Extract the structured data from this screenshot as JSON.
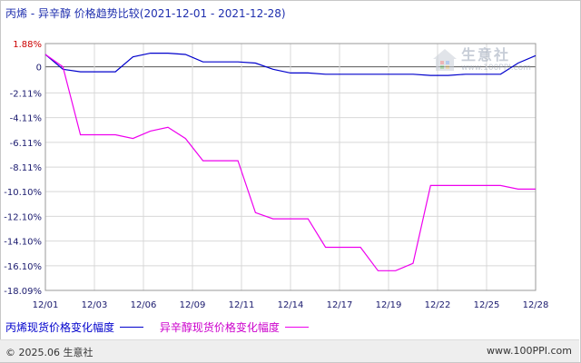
{
  "title": "丙烯 - 异辛醇 价格趋势比较(2021-12-01 - 2021-12-28)",
  "watermark": {
    "name": "生意社",
    "site": "www.100PPI.com"
  },
  "footer": {
    "copyright": "© 2025.06 生意社",
    "website": "www.100PPI.com"
  },
  "colors": {
    "series1": "#0000cc",
    "series2": "#ee00ee",
    "axis_text": "#1a1a6e",
    "positive_tick": "#cc0000",
    "grid": "#d8d8d8"
  },
  "chart_data": {
    "type": "line",
    "ylim": [
      -18.09,
      1.88
    ],
    "yticks": [
      1.88,
      0,
      -2.11,
      -4.11,
      -6.11,
      -8.11,
      -10.1,
      -12.1,
      -14.1,
      -16.1,
      -18.09
    ],
    "ytick_labels": [
      "1.88%",
      "0",
      "-2.11%",
      "-4.11%",
      "-6.11%",
      "-8.11%",
      "-10.10%",
      "-12.10%",
      "-14.10%",
      "-16.10%",
      "-18.09%"
    ],
    "xtick_labels": [
      "12/01",
      "12/03",
      "12/06",
      "12/09",
      "12/11",
      "12/14",
      "12/17",
      "12/19",
      "12/22",
      "12/25",
      "12/28"
    ],
    "grid": true,
    "legend_position": "bottom",
    "series": [
      {
        "name": "丙烯现货价格变化幅度",
        "points": [
          [
            0,
            1.0
          ],
          [
            2,
            -0.2
          ],
          [
            4,
            -0.4
          ],
          [
            6,
            -0.4
          ],
          [
            8,
            -0.4
          ],
          [
            10,
            0.8
          ],
          [
            12,
            1.1
          ],
          [
            14,
            1.1
          ],
          [
            16,
            1.0
          ],
          [
            18,
            0.4
          ],
          [
            20,
            0.4
          ],
          [
            22,
            0.4
          ],
          [
            24,
            0.3
          ],
          [
            26,
            -0.2
          ],
          [
            28,
            -0.5
          ],
          [
            30,
            -0.5
          ],
          [
            32,
            -0.6
          ],
          [
            34,
            -0.6
          ],
          [
            36,
            -0.6
          ],
          [
            38,
            -0.6
          ],
          [
            40,
            -0.6
          ],
          [
            42,
            -0.6
          ],
          [
            44,
            -0.7
          ],
          [
            46,
            -0.7
          ],
          [
            48,
            -0.6
          ],
          [
            50,
            -0.6
          ],
          [
            52,
            -0.6
          ],
          [
            54,
            0.3
          ],
          [
            56,
            0.9
          ]
        ]
      },
      {
        "name": "异辛醇现货价格变化幅度",
        "points": [
          [
            0,
            1.0
          ],
          [
            2,
            0.0
          ],
          [
            4,
            -5.5
          ],
          [
            6,
            -5.5
          ],
          [
            8,
            -5.5
          ],
          [
            10,
            -5.8
          ],
          [
            12,
            -5.2
          ],
          [
            14,
            -4.9
          ],
          [
            16,
            -5.8
          ],
          [
            18,
            -7.6
          ],
          [
            20,
            -7.6
          ],
          [
            22,
            -7.6
          ],
          [
            24,
            -11.8
          ],
          [
            26,
            -12.3
          ],
          [
            28,
            -12.3
          ],
          [
            30,
            -12.3
          ],
          [
            32,
            -14.6
          ],
          [
            34,
            -14.6
          ],
          [
            36,
            -14.6
          ],
          [
            38,
            -16.5
          ],
          [
            40,
            -16.5
          ],
          [
            42,
            -15.9
          ],
          [
            44,
            -9.6
          ],
          [
            46,
            -9.6
          ],
          [
            48,
            -9.6
          ],
          [
            50,
            -9.6
          ],
          [
            52,
            -9.6
          ],
          [
            54,
            -9.9
          ],
          [
            56,
            -9.9
          ]
        ]
      }
    ]
  }
}
